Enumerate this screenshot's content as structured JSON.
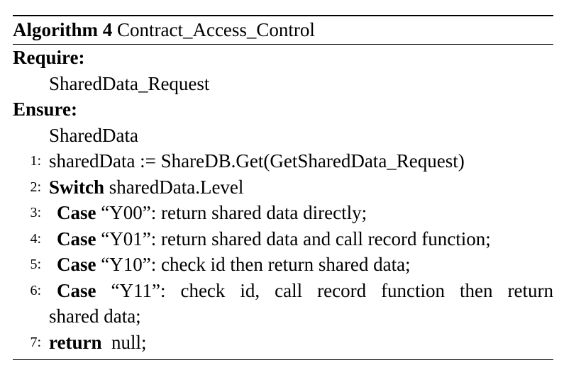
{
  "algorithm": {
    "label": "Algorithm 4",
    "name": "Contract_Access_Control",
    "require_label": "Require:",
    "require_value": "SharedData_Request",
    "ensure_label": "Ensure:",
    "ensure_value": "SharedData",
    "lines": [
      {
        "num": "1:",
        "kw": "",
        "text": "sharedData := ShareDB.Get(GetSharedData_Request)"
      },
      {
        "num": "2:",
        "kw": "Switch",
        "text": "sharedData.Level"
      },
      {
        "num": "3:",
        "kw": "Case",
        "text": "“Y00”: return shared data directly;"
      },
      {
        "num": "4:",
        "kw": "Case",
        "text": "“Y01”: return shared data and call record function;"
      },
      {
        "num": "5:",
        "kw": "Case",
        "text": "“Y10”: check id then return shared data;"
      },
      {
        "num": "6:",
        "kw": "Case",
        "text": "“Y11”: check id, call record function then return",
        "continuation": "shared data;"
      },
      {
        "num": "7:",
        "kw": "return",
        "text": "null;"
      }
    ]
  }
}
